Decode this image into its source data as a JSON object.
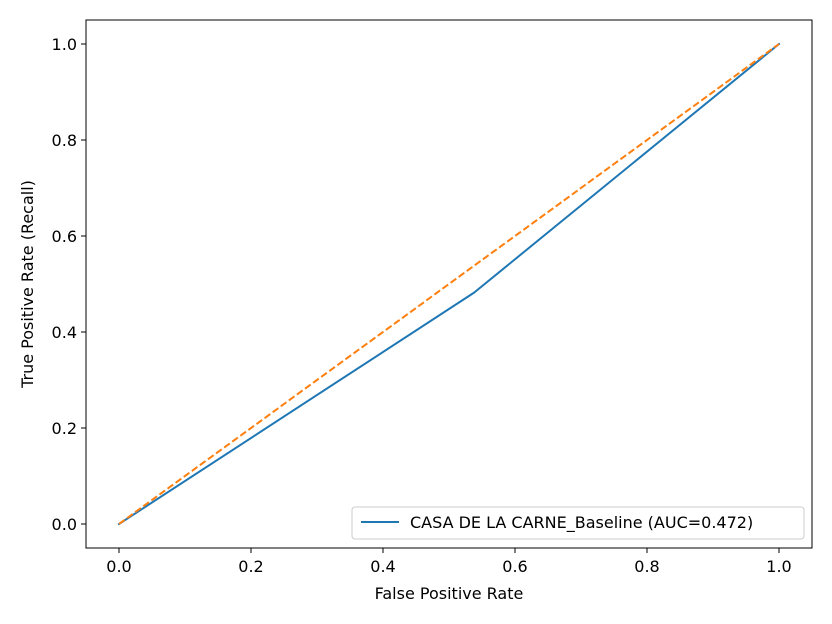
{
  "chart_data": {
    "type": "line",
    "title": "",
    "xlabel": "False Positive Rate",
    "ylabel": "True Positive Rate (Recall)",
    "xlim": [
      -0.05,
      1.05
    ],
    "ylim": [
      -0.05,
      1.05
    ],
    "xticks": [
      0.0,
      0.2,
      0.4,
      0.6,
      0.8,
      1.0
    ],
    "yticks": [
      0.0,
      0.2,
      0.4,
      0.6,
      0.8,
      1.0
    ],
    "xtick_labels": [
      "0.0",
      "0.2",
      "0.4",
      "0.6",
      "0.8",
      "1.0"
    ],
    "ytick_labels": [
      "0.0",
      "0.2",
      "0.4",
      "0.6",
      "0.8",
      "1.0"
    ],
    "grid": false,
    "legend_position": "lower-right",
    "series": [
      {
        "name": "CASA DE LA CARNE_Baseline (AUC=0.472)",
        "color": "#1f77b4",
        "style": "solid",
        "x": [
          0.0,
          0.538,
          1.0
        ],
        "y": [
          0.0,
          0.482,
          1.0
        ]
      },
      {
        "color": "#ff7f0e",
        "style": "dashed",
        "x": [
          0.0,
          1.0
        ],
        "y": [
          0.0,
          1.0
        ]
      }
    ]
  }
}
